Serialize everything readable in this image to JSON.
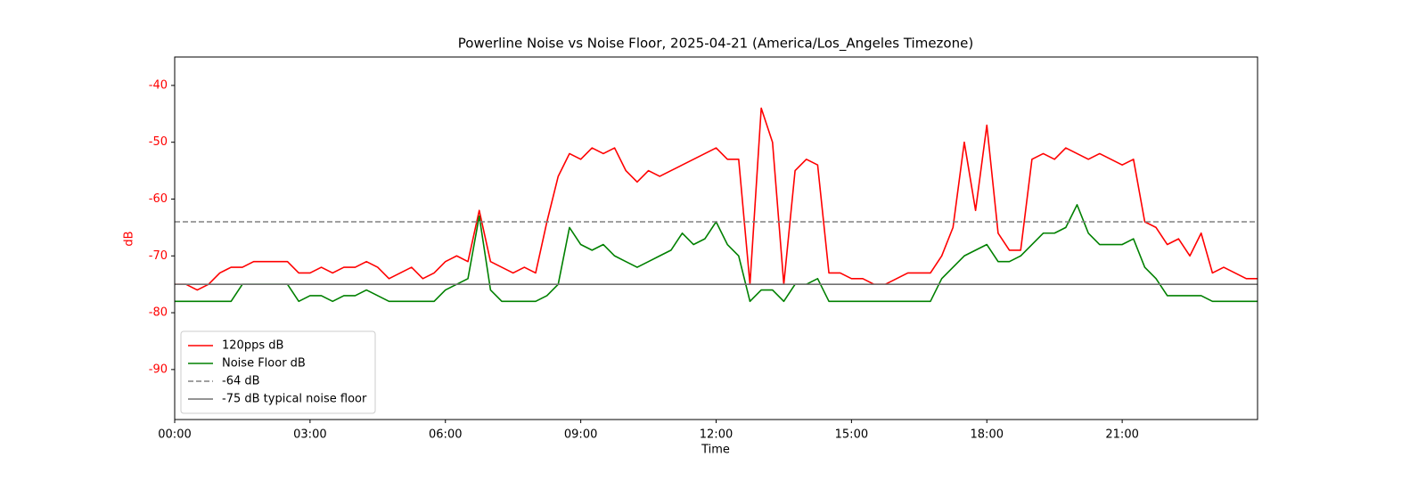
{
  "chart_data": {
    "type": "line",
    "title": "Powerline Noise vs Noise Floor, 2025-04-21 (America/Los_Angeles Timezone)",
    "xlabel": "Time",
    "ylabel": "dB",
    "yaxis_color": "#ff0000",
    "x": [
      "00:00",
      "00:15",
      "00:30",
      "00:45",
      "01:00",
      "01:15",
      "01:30",
      "01:45",
      "02:00",
      "02:15",
      "02:30",
      "02:45",
      "03:00",
      "03:15",
      "03:30",
      "03:45",
      "04:00",
      "04:15",
      "04:30",
      "04:45",
      "05:00",
      "05:15",
      "05:30",
      "05:45",
      "06:00",
      "06:15",
      "06:30",
      "06:45",
      "07:00",
      "07:15",
      "07:30",
      "07:45",
      "08:00",
      "08:15",
      "08:30",
      "08:45",
      "09:00",
      "09:15",
      "09:30",
      "09:45",
      "10:00",
      "10:15",
      "10:30",
      "10:45",
      "11:00",
      "11:15",
      "11:30",
      "11:45",
      "12:00",
      "12:15",
      "12:30",
      "12:45",
      "13:00",
      "13:15",
      "13:30",
      "13:45",
      "14:00",
      "14:15",
      "14:30",
      "14:45",
      "15:00",
      "15:15",
      "15:30",
      "15:45",
      "16:00",
      "16:15",
      "16:30",
      "16:45",
      "17:00",
      "17:15",
      "17:30",
      "17:45",
      "18:00",
      "18:15",
      "18:30",
      "18:45",
      "19:00",
      "19:15",
      "19:30",
      "19:45",
      "20:00",
      "20:15",
      "20:30",
      "20:45",
      "21:00",
      "21:15",
      "21:30",
      "21:45",
      "22:00",
      "22:15",
      "22:30",
      "22:45",
      "23:00",
      "23:15",
      "23:30",
      "23:45",
      "24:00"
    ],
    "series": [
      {
        "name": "120pps dB",
        "color": "#ff0000",
        "values": [
          -75,
          -75,
          -76,
          -75,
          -73,
          -72,
          -72,
          -71,
          -71,
          -71,
          -71,
          -73,
          -73,
          -72,
          -73,
          -72,
          -72,
          -71,
          -72,
          -74,
          -73,
          -72,
          -74,
          -73,
          -71,
          -70,
          -71,
          -62,
          -71,
          -72,
          -73,
          -72,
          -73,
          -64,
          -56,
          -52,
          -53,
          -51,
          -52,
          -51,
          -55,
          -57,
          -55,
          -56,
          -55,
          -54,
          -53,
          -52,
          -51,
          -53,
          -53,
          -75,
          -44,
          -50,
          -75,
          -55,
          -53,
          -54,
          -73,
          -73,
          -74,
          -74,
          -75,
          -75,
          -74,
          -73,
          -73,
          -73,
          -70,
          -65,
          -50,
          -62,
          -47,
          -66,
          -69,
          -69,
          -53,
          -52,
          -53,
          -51,
          -52,
          -53,
          -52,
          -53,
          -54,
          -53,
          -64,
          -65,
          -68,
          -67,
          -70,
          -66,
          -73,
          -72,
          -73,
          -74,
          -74
        ]
      },
      {
        "name": "Noise Floor dB",
        "color": "#008000",
        "values": [
          -78,
          -78,
          -78,
          -78,
          -78,
          -78,
          -75,
          -75,
          -75,
          -75,
          -75,
          -78,
          -77,
          -77,
          -78,
          -77,
          -77,
          -76,
          -77,
          -78,
          -78,
          -78,
          -78,
          -78,
          -76,
          -75,
          -74,
          -63,
          -76,
          -78,
          -78,
          -78,
          -78,
          -77,
          -75,
          -65,
          -68,
          -69,
          -68,
          -70,
          -71,
          -72,
          -71,
          -70,
          -69,
          -66,
          -68,
          -67,
          -64,
          -68,
          -70,
          -78,
          -76,
          -76,
          -78,
          -75,
          -75,
          -74,
          -78,
          -78,
          -78,
          -78,
          -78,
          -78,
          -78,
          -78,
          -78,
          -78,
          -74,
          -72,
          -70,
          -69,
          -68,
          -71,
          -71,
          -70,
          -68,
          -66,
          -66,
          -65,
          -61,
          -66,
          -68,
          -68,
          -68,
          -67,
          -72,
          -74,
          -77,
          -77,
          -77,
          -77,
          -78,
          -78,
          -78,
          -78,
          -78
        ]
      }
    ],
    "reference_lines": [
      {
        "name": "-64 dB",
        "value": -64,
        "color": "#808080",
        "style": "dashed"
      },
      {
        "name": "-75 dB typical noise floor",
        "value": -75,
        "color": "#707070",
        "style": "solid"
      }
    ],
    "xlim": [
      "00:00",
      "24:00"
    ],
    "xticks": [
      "00:00",
      "03:00",
      "06:00",
      "09:00",
      "12:00",
      "15:00",
      "18:00",
      "21:00"
    ],
    "ylim": [
      -98.8,
      -35
    ],
    "yticks": [
      -90,
      -80,
      -70,
      -60,
      -50,
      -40
    ],
    "legend": "lower left"
  }
}
